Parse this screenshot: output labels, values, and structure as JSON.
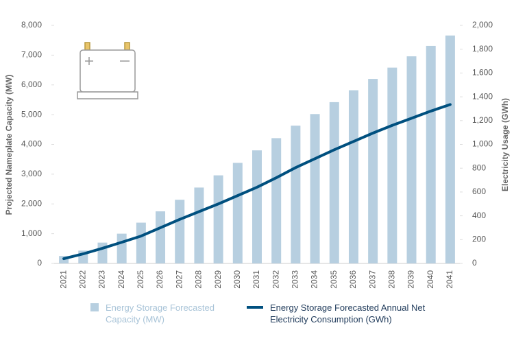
{
  "chart_data": {
    "type": "bar_line",
    "categories": [
      "2021",
      "2022",
      "2023",
      "2024",
      "2025",
      "2026",
      "2027",
      "2028",
      "2029",
      "2030",
      "2031",
      "2032",
      "2033",
      "2034",
      "2035",
      "2036",
      "2037",
      "2038",
      "2039",
      "2040",
      "2041"
    ],
    "series": [
      {
        "name": "Energy Storage Forecasted Capacity (MW)",
        "type": "bar",
        "color": "#b7cfe0",
        "axis": "y",
        "values": [
          250,
          430,
          700,
          1000,
          1370,
          1750,
          2140,
          2550,
          2960,
          3380,
          3800,
          4210,
          4630,
          5020,
          5420,
          5820,
          6200,
          6580,
          6960,
          7310,
          7660
        ]
      },
      {
        "name": "Energy Storage Forecasted Annual Net Electricity Consumption (GWh)",
        "type": "line",
        "color": "#00507f",
        "axis": "y2",
        "values": [
          40,
          80,
          127,
          178,
          230,
          300,
          370,
          435,
          500,
          570,
          640,
          720,
          805,
          880,
          955,
          1025,
          1095,
          1160,
          1220,
          1280,
          1335
        ]
      }
    ],
    "y_label": "Projected Nameplate Capacity (MW)",
    "y2_label": "Electricity Usage (GWh)",
    "ylim": [
      0,
      8000
    ],
    "yticks": [
      0,
      {
        "value": 1000,
        "label": "1,000"
      },
      {
        "value": 2000,
        "label": "2,000"
      },
      {
        "value": 3000,
        "label": "3,000"
      },
      {
        "value": 4000,
        "label": "4,000"
      },
      {
        "value": 5000,
        "label": "5,000"
      },
      {
        "value": 6000,
        "label": "6,000"
      },
      {
        "value": 7000,
        "label": "7,000"
      },
      {
        "value": 8000,
        "label": "8,000"
      }
    ],
    "y2lim": [
      0,
      2000
    ],
    "y2ticks": [
      0,
      200,
      400,
      600,
      800,
      {
        "value": 1000,
        "label": "1,000"
      },
      {
        "value": 1200,
        "label": "1,200"
      },
      {
        "value": 1400,
        "label": "1,400"
      },
      {
        "value": 1600,
        "label": "1,600"
      },
      {
        "value": 1800,
        "label": "1,800"
      },
      {
        "value": 2000,
        "label": "2,000"
      }
    ],
    "grid": false
  }
}
